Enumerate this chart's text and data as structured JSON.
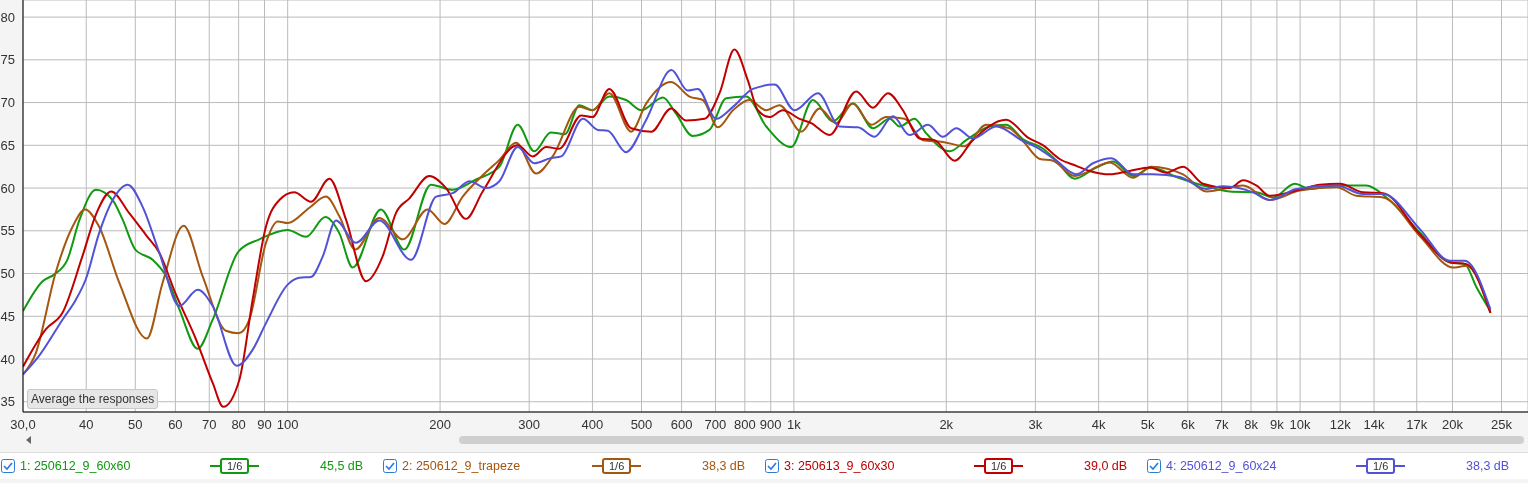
{
  "chart_data": {
    "type": "line",
    "xlim": [
      30,
      28200
    ],
    "ylim": [
      33.8,
      82
    ],
    "log": "x",
    "grid": true,
    "legend": "bottom",
    "marker": "none",
    "line_style": "solid",
    "xticks": [
      {
        "value": 30,
        "label": "30,0"
      },
      40,
      50,
      60,
      70,
      80,
      90,
      100,
      200,
      300,
      400,
      500,
      600,
      700,
      800,
      900,
      {
        "value": 1000,
        "label": "1k"
      },
      {
        "value": 2000,
        "label": "2k"
      },
      {
        "value": 3000,
        "label": "3k"
      },
      {
        "value": 4000,
        "label": "4k"
      },
      {
        "value": 5000,
        "label": "5k"
      },
      {
        "value": 6000,
        "label": "6k"
      },
      {
        "value": 7000,
        "label": "7k"
      },
      {
        "value": 8000,
        "label": "8k"
      },
      {
        "value": 9000,
        "label": "9k"
      },
      {
        "value": 10000,
        "label": "10k"
      },
      {
        "value": 12000,
        "label": "12k"
      },
      {
        "value": 14000,
        "label": "14k"
      },
      {
        "value": 17000,
        "label": "17k"
      },
      {
        "value": 20000,
        "label": "20k"
      },
      {
        "value": 25000,
        "label": "25k"
      }
    ],
    "yticks": [
      35,
      40,
      45,
      50,
      55,
      60,
      65,
      70,
      75,
      80
    ],
    "annotations": [
      "Average the responses",
      "1/6",
      "45,5 dB",
      "1/6",
      "38,3 dB",
      "1/6",
      "39,0 dB",
      "1/6",
      "38,3 dB"
    ],
    "series": [
      {
        "name": "1: 250612_9_60x60",
        "color": "#119911",
        "x": [
          30,
          32.8,
          34.6,
          36.7,
          38.8,
          41.8,
          45.1,
          47.2,
          50,
          54.1,
          57.5,
          61.1,
          66.4,
          71.1,
          80,
          87.9,
          100,
          108.7,
          118.7,
          126.5,
          134.4,
          152.8,
          170,
          191.8,
          211.8,
          235.6,
          262,
          284.7,
          307,
          331,
          353,
          377,
          400,
          432,
          466,
          500,
          551,
          585,
          631,
          681,
          735,
          805,
          882,
          988,
          1090,
          1194,
          1308,
          1433,
          1546,
          1618,
          1731,
          1826,
          2031,
          2190,
          2436,
          2627,
          2835,
          3108,
          3300,
          3587,
          3958,
          4274,
          4678,
          5082,
          5697,
          6431,
          7262,
          8196,
          8842,
          9760,
          10460,
          11800,
          13520,
          14810,
          17240,
          19760,
          21150,
          22310,
          23770
        ],
        "values": [
          45.6,
          49.1,
          49.9,
          51.6,
          56.3,
          59.8,
          58.6,
          56.3,
          52.8,
          51.6,
          49.7,
          45.8,
          41.2,
          44.6,
          52.6,
          54.0,
          55.1,
          54.3,
          56.6,
          54.7,
          50.7,
          57.5,
          52.8,
          60.4,
          59.8,
          61.0,
          62.5,
          67.4,
          64.3,
          66.5,
          66.3,
          69.7,
          69.1,
          70.7,
          70.3,
          69.1,
          70.6,
          68.7,
          66.1,
          66.8,
          70.5,
          70.7,
          67.2,
          64.8,
          70.3,
          67.8,
          69.9,
          67.0,
          68.1,
          67.2,
          68.1,
          66.4,
          64.3,
          65.6,
          67.2,
          67.4,
          65.7,
          64.6,
          63.2,
          61.1,
          62.4,
          63.1,
          61.4,
          62.4,
          61.3,
          60.3,
          59.6,
          59.5,
          58.9,
          60.5,
          59.9,
          60.3,
          60.3,
          58.9,
          54.8,
          51.3,
          51.1,
          48.4,
          45.6
        ]
      },
      {
        "name": "2: 250612_9_trapeze",
        "color": "#a5560f",
        "x": [
          30,
          31.8,
          34.8,
          37.6,
          39.8,
          42.4,
          46.5,
          52.7,
          56.6,
          62.3,
          67.9,
          75.5,
          80,
          84,
          90.6,
          95.6,
          100,
          110.4,
          119,
          126.5,
          136,
          151.7,
          168.8,
          189,
          204,
          221.7,
          242.8,
          262,
          282.6,
          309.6,
          333.8,
          377,
          400,
          432,
          477,
          511,
          572,
          622,
          661,
          708,
          758,
          817,
          882,
          937,
          1034,
          1124,
          1212,
          1308,
          1422,
          1522,
          1654,
          1798,
          1970,
          2172,
          2398,
          2665,
          2835,
          3062,
          3248,
          3587,
          4206,
          4678,
          5082,
          5872,
          6530,
          7717,
          8711,
          9985,
          11800,
          12920,
          14590,
          17240,
          20060,
          21320,
          23770
        ],
        "values": [
          38.2,
          40.7,
          50.1,
          55.5,
          57.5,
          55.5,
          48.9,
          42.4,
          48.9,
          55.6,
          49.7,
          43.3,
          43.0,
          44.6,
          53.6,
          56.1,
          55.9,
          57.7,
          59.0,
          56.7,
          52.8,
          56.5,
          54.0,
          57.5,
          55.8,
          59.0,
          61.5,
          63.3,
          65.3,
          61.7,
          63.7,
          69.5,
          69.1,
          71.1,
          66.6,
          69.9,
          72.4,
          70.7,
          70.3,
          67.1,
          69.1,
          70.3,
          69.1,
          69.7,
          66.6,
          69.3,
          67.6,
          69.9,
          67.4,
          68.3,
          68.1,
          65.6,
          65.4,
          64.9,
          67.4,
          67.0,
          65.5,
          63.4,
          63.2,
          61.4,
          63.0,
          61.2,
          62.5,
          61.6,
          59.6,
          60.3,
          58.6,
          59.7,
          60.1,
          59.1,
          58.9,
          54.4,
          50.7,
          50.9,
          45.4
        ]
      },
      {
        "name": "3: 250613_9_60x30",
        "color": "#c00000",
        "x": [
          30,
          33.3,
          35.9,
          39.3,
          41.8,
          44.8,
          48.6,
          52.5,
          55.8,
          60,
          65.9,
          71.1,
          74.6,
          80.3,
          85.3,
          90.6,
          96.3,
          103,
          111.2,
          120.9,
          130.4,
          142.8,
          154,
          163.7,
          174,
          190.5,
          205.5,
          225,
          242.8,
          284.7,
          305,
          324,
          344,
          380,
          400,
          432,
          477,
          523,
          572,
          613,
          666,
          713,
          763,
          811,
          849,
          895,
          951,
          1026,
          1082,
          1176,
          1328,
          1433,
          1534,
          1642,
          1771,
          1897,
          2077,
          2257,
          2627,
          2901,
          3108,
          3350,
          3614,
          3840,
          4206,
          4607,
          5044,
          5441,
          5872,
          6431,
          7262,
          7717,
          8196,
          8711,
          9985,
          10940,
          11980,
          13320,
          14590,
          17240,
          19850,
          21320,
          23770
        ],
        "values": [
          39.1,
          43.5,
          45.4,
          52.0,
          56.9,
          59.6,
          57.1,
          54.5,
          52.4,
          47.7,
          42.3,
          37.2,
          34.4,
          37.6,
          47.0,
          55.5,
          58.6,
          59.5,
          58.4,
          61.1,
          56.3,
          49.1,
          52.0,
          57.1,
          58.8,
          61.4,
          60.0,
          56.4,
          59.6,
          65.0,
          63.7,
          64.8,
          64.6,
          68.5,
          68.3,
          71.6,
          67.0,
          66.6,
          69.3,
          67.9,
          68.1,
          71.1,
          76.2,
          72.6,
          69.1,
          68.3,
          69.1,
          68.1,
          67.6,
          66.2,
          71.3,
          69.4,
          71.1,
          69.1,
          65.8,
          65.6,
          63.2,
          65.6,
          68.0,
          65.9,
          65.0,
          63.4,
          62.6,
          62.0,
          61.6,
          62.0,
          62.4,
          61.8,
          62.5,
          60.5,
          60.0,
          60.9,
          60.3,
          59.1,
          59.8,
          60.4,
          60.5,
          59.5,
          59.4,
          54.6,
          51.3,
          51.1,
          45.4
        ]
      },
      {
        "name": "4: 250612_9_60x24",
        "color": "#5252d6",
        "x": [
          30,
          32.3,
          35.9,
          38.2,
          39.9,
          42.4,
          45.1,
          48.3,
          51.7,
          55.8,
          61.1,
          66.4,
          71.1,
          79.3,
          85.3,
          90.6,
          100,
          105.5,
          111.2,
          117.3,
          124.6,
          136.4,
          151.7,
          175.3,
          196.4,
          211.8,
          228.6,
          246.5,
          262,
          284.7,
          307,
          331,
          347,
          383,
          410,
          429,
          466,
          511,
          573,
          617,
          646,
          702,
          758,
          830,
          916,
          1003,
          1116,
          1231,
          1338,
          1443,
          1569,
          1693,
          1840,
          1970,
          2093,
          2257,
          2512,
          2835,
          3013,
          3300,
          3614,
          3897,
          4238,
          4678,
          5122,
          5783,
          6530,
          7044,
          8073,
          8711,
          9834,
          11800,
          13320,
          14590,
          17240,
          19760,
          21150,
          23770
        ],
        "values": [
          38.2,
          40.4,
          44.6,
          47.0,
          49.3,
          54.7,
          58.6,
          60.4,
          57.8,
          52.4,
          46.2,
          48.1,
          46.2,
          39.2,
          41.1,
          44.2,
          48.7,
          49.5,
          49.6,
          52.0,
          56.2,
          53.6,
          56.2,
          51.6,
          59.0,
          59.4,
          60.8,
          60.0,
          60.8,
          64.8,
          62.9,
          63.5,
          63.7,
          68.1,
          66.8,
          66.7,
          64.2,
          68.0,
          73.8,
          71.4,
          71.6,
          68.1,
          69.5,
          71.6,
          72.1,
          69.1,
          71.1,
          67.2,
          67.1,
          66.0,
          68.4,
          66.2,
          67.4,
          66.0,
          67.0,
          65.8,
          67.2,
          65.5,
          64.8,
          63.2,
          61.6,
          62.9,
          63.5,
          61.6,
          61.6,
          61.3,
          59.9,
          60.2,
          59.5,
          58.6,
          59.9,
          60.3,
          59.3,
          59.3,
          55.2,
          51.5,
          51.5,
          45.8
        ]
      }
    ]
  }
}
